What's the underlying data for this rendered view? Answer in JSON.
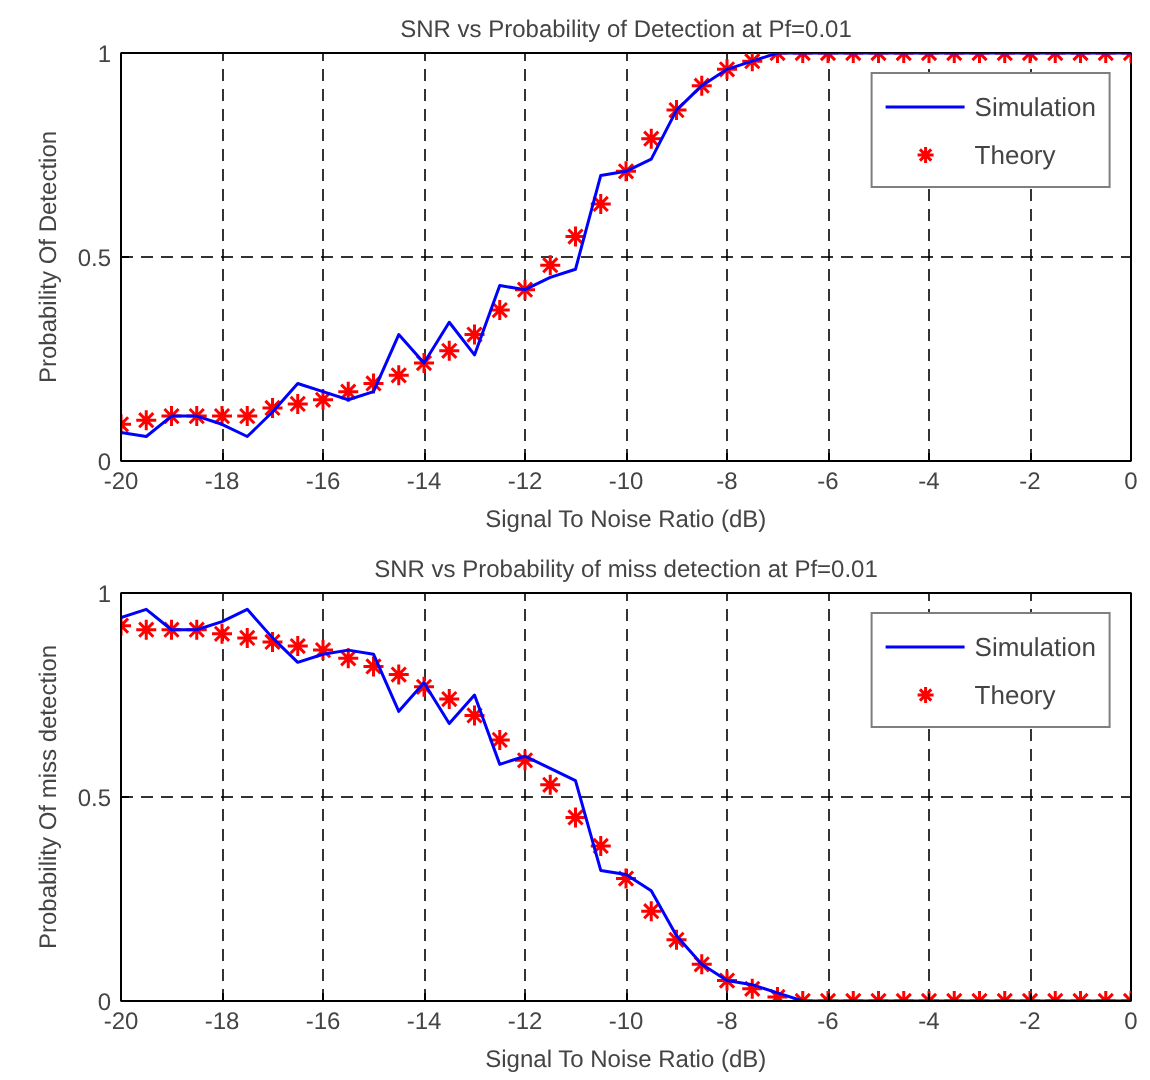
{
  "chart_data": [
    {
      "type": "line",
      "title": "SNR vs Probability of Detection at Pf=0.01",
      "xlabel": "Signal To Noise Ratio (dB)",
      "ylabel": "Probability Of Detection",
      "x": [
        -20,
        -19.5,
        -19,
        -18.5,
        -18,
        -17.5,
        -17,
        -16.5,
        -16,
        -15.5,
        -15,
        -14.5,
        -14,
        -13.5,
        -13,
        -12.5,
        -12,
        -11.5,
        -11,
        -10.5,
        -10,
        -9.5,
        -9,
        -8.5,
        -8,
        -7.5,
        -7,
        -6.5,
        -6,
        -5.5,
        -5,
        -4.5,
        -4,
        -3.5,
        -3,
        -2.5,
        -2,
        -1.5,
        -1,
        -0.5,
        0
      ],
      "series": [
        {
          "name": "Simulation",
          "color": "#0000ff",
          "line_style": "solid",
          "values": [
            0.07,
            0.06,
            0.11,
            0.11,
            0.09,
            0.06,
            0.12,
            0.19,
            0.17,
            0.15,
            0.17,
            0.31,
            0.24,
            0.34,
            0.26,
            0.43,
            0.42,
            0.45,
            0.47,
            0.7,
            0.71,
            0.74,
            0.86,
            0.92,
            0.96,
            0.98,
            1.0,
            1,
            1,
            1,
            1,
            1,
            1,
            1,
            1,
            1,
            1,
            1,
            1,
            1,
            1
          ]
        },
        {
          "name": "Theory",
          "type": "scatter",
          "color": "#ff0000",
          "marker": "cross",
          "values": [
            0.09,
            0.1,
            0.11,
            0.11,
            0.11,
            0.11,
            0.13,
            0.14,
            0.15,
            0.17,
            0.19,
            0.21,
            0.24,
            0.27,
            0.31,
            0.37,
            0.42,
            0.48,
            0.55,
            0.63,
            0.71,
            0.79,
            0.86,
            0.92,
            0.96,
            0.98,
            1.0,
            1,
            1,
            1,
            1,
            1,
            1,
            1,
            1,
            1,
            1,
            1,
            1,
            1,
            1
          ]
        }
      ],
      "xlim": [
        -20,
        0
      ],
      "xticks": [
        -20,
        -18,
        -16,
        -14,
        -12,
        -10,
        -8,
        -6,
        -4,
        -2,
        0
      ],
      "ylim": [
        0,
        1
      ],
      "yticks": [
        0,
        0.5,
        1
      ],
      "grid": true,
      "legend": "top right"
    },
    {
      "type": "line",
      "title": "SNR vs Probability of miss detection at Pf=0.01",
      "xlabel": "Signal To Noise Ratio (dB)",
      "ylabel": "Probability Of miss detection",
      "x": [
        -20,
        -19.5,
        -19,
        -18.5,
        -18,
        -17.5,
        -17,
        -16.5,
        -16,
        -15.5,
        -15,
        -14.5,
        -14,
        -13.5,
        -13,
        -12.5,
        -12,
        -11.5,
        -11,
        -10.5,
        -10,
        -9.5,
        -9,
        -8.5,
        -8,
        -7.5,
        -7,
        -6.5,
        -6,
        -5.5,
        -5,
        -4.5,
        -4,
        -3.5,
        -3,
        -2.5,
        -2,
        -1.5,
        -1,
        -0.5,
        0
      ],
      "series": [
        {
          "name": "Simulation",
          "color": "#0000ff",
          "line_style": "solid",
          "values": [
            0.94,
            0.96,
            0.91,
            0.91,
            0.93,
            0.96,
            0.89,
            0.83,
            0.85,
            0.86,
            0.85,
            0.71,
            0.78,
            0.68,
            0.75,
            0.58,
            0.6,
            0.57,
            0.54,
            0.32,
            0.31,
            0.27,
            0.16,
            0.09,
            0.05,
            0.04,
            0.02,
            0,
            0,
            0,
            0,
            0,
            0,
            0,
            0,
            0,
            0,
            0,
            0,
            0,
            0
          ]
        },
        {
          "name": "Theory",
          "type": "scatter",
          "color": "#ff0000",
          "marker": "cross",
          "values": [
            0.92,
            0.91,
            0.91,
            0.91,
            0.9,
            0.89,
            0.88,
            0.87,
            0.86,
            0.84,
            0.82,
            0.8,
            0.77,
            0.74,
            0.7,
            0.64,
            0.59,
            0.53,
            0.45,
            0.38,
            0.3,
            0.22,
            0.15,
            0.09,
            0.05,
            0.03,
            0.01,
            0,
            0,
            0,
            0,
            0,
            0,
            0,
            0,
            0,
            0,
            0,
            0,
            0,
            0
          ]
        }
      ],
      "xlim": [
        -20,
        0
      ],
      "xticks": [
        -20,
        -18,
        -16,
        -14,
        -12,
        -10,
        -8,
        -6,
        -4,
        -2,
        0
      ],
      "ylim": [
        0,
        1
      ],
      "yticks": [
        0,
        0.5,
        1
      ],
      "grid": true,
      "legend": "top right"
    }
  ]
}
